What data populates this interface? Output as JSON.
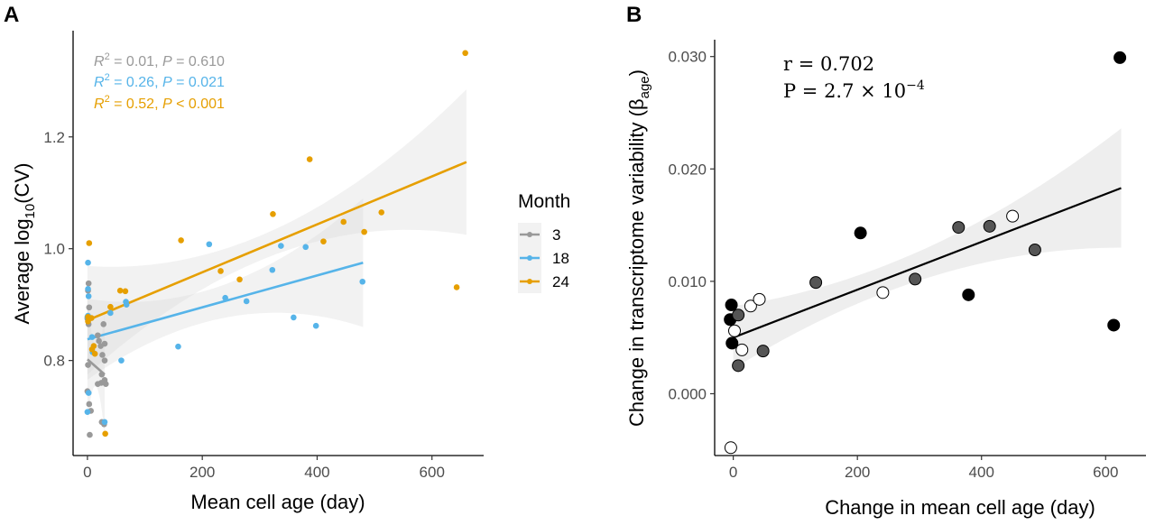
{
  "panel_a": {
    "letter": "A",
    "annotations": [
      {
        "r2_label": "R",
        "r2_sup": "2",
        "r2_value": " = 0.01, ",
        "p_label": "P",
        "p_value": " = 0.610",
        "color": "#999999"
      },
      {
        "r2_label": "R",
        "r2_sup": "2",
        "r2_value": " = 0.26, ",
        "p_label": "P",
        "p_value": " = 0.021",
        "color": "#56b4e9"
      },
      {
        "r2_label": "R",
        "r2_sup": "2",
        "r2_value": " = 0.52, ",
        "p_label": "P",
        "p_value": " < 0.001",
        "color": "#e69f00"
      }
    ],
    "ylabel_main": "Average log",
    "ylabel_sub": "10",
    "ylabel_end": "(CV)",
    "legend": {
      "title": "Month",
      "items": [
        {
          "label": "3",
          "color": "#999999"
        },
        {
          "label": "18",
          "color": "#56b4e9"
        },
        {
          "label": "24",
          "color": "#e69f00"
        }
      ]
    }
  },
  "panel_b": {
    "letter": "B",
    "stat_r": "r = 0.702",
    "stat_p_prefix": "P = 2.7 × 10",
    "stat_p_exp": "−4",
    "ylabel_main": "Change in transcriptome variability (β",
    "ylabel_sub": "age",
    "ylabel_end": ")"
  },
  "chart_data": [
    {
      "type": "scatter",
      "panel": "A",
      "xlabel": "Mean cell age (day)",
      "ylabel": "Average log10(CV)",
      "xlim": [
        -25,
        690
      ],
      "ylim": [
        0.63,
        1.39
      ],
      "xticks": [
        0,
        200,
        400,
        600
      ],
      "yticks": [
        0.8,
        1.0,
        1.2
      ],
      "xtick_labels": [
        "0",
        "200",
        "400",
        "600"
      ],
      "ytick_labels": [
        "0.8",
        "1.0",
        "1.2"
      ],
      "grid": false,
      "legend_position": "right",
      "series": [
        {
          "name": "3",
          "color": "#999999",
          "points": [
            [
              2,
              0.938
            ],
            [
              1,
              0.925
            ],
            [
              3,
              0.895
            ],
            [
              0,
              0.875
            ],
            [
              2,
              0.865
            ],
            [
              1,
              0.792
            ],
            [
              0,
              0.745
            ],
            [
              3,
              0.722
            ],
            [
              6,
              0.71
            ],
            [
              4,
              0.667
            ],
            [
              18,
              0.845
            ],
            [
              20,
              0.835
            ],
            [
              23,
              0.826
            ],
            [
              28,
              0.865
            ],
            [
              30,
              0.83
            ],
            [
              26,
              0.81
            ],
            [
              30,
              0.8
            ],
            [
              25,
              0.775
            ],
            [
              30,
              0.765
            ],
            [
              32,
              0.758
            ],
            [
              24,
              0.76
            ],
            [
              18,
              0.758
            ],
            [
              25,
              0.69
            ],
            [
              29,
              0.686
            ]
          ],
          "fit": {
            "x": [
              0,
              30
            ],
            "y": [
              0.802,
              0.775
            ]
          }
        },
        {
          "name": "18",
          "color": "#56b4e9",
          "points": [
            [
              1,
              0.975
            ],
            [
              1,
              0.928
            ],
            [
              2,
              0.915
            ],
            [
              1,
              0.88
            ],
            [
              0,
              0.878
            ],
            [
              0,
              0.708
            ],
            [
              2,
              0.742
            ],
            [
              8,
              0.842
            ],
            [
              9,
              0.815
            ],
            [
              40,
              0.885
            ],
            [
              59,
              0.8
            ],
            [
              67,
              0.905
            ],
            [
              68,
              0.9
            ],
            [
              158,
              0.825
            ],
            [
              212,
              1.008
            ],
            [
              240,
              0.912
            ],
            [
              277,
              0.906
            ],
            [
              322,
              0.962
            ],
            [
              337,
              1.005
            ],
            [
              359,
              0.877
            ],
            [
              380,
              1.003
            ],
            [
              398,
              0.862
            ],
            [
              479,
              0.941
            ],
            [
              30,
              0.69
            ]
          ],
          "fit": {
            "x": [
              0,
              480
            ],
            "y": [
              0.838,
              0.975
            ]
          }
        },
        {
          "name": "24",
          "color": "#e69f00",
          "points": [
            [
              3,
              1.01
            ],
            [
              1,
              0.878
            ],
            [
              1,
              0.87
            ],
            [
              7,
              0.876
            ],
            [
              8,
              0.82
            ],
            [
              11,
              0.826
            ],
            [
              13,
              0.812
            ],
            [
              40,
              0.896
            ],
            [
              57,
              0.925
            ],
            [
              66,
              0.924
            ],
            [
              163,
              1.015
            ],
            [
              232,
              0.96
            ],
            [
              265,
              0.945
            ],
            [
              323,
              1.062
            ],
            [
              387,
              1.16
            ],
            [
              411,
              1.013
            ],
            [
              446,
              1.048
            ],
            [
              482,
              1.03
            ],
            [
              512,
              1.065
            ],
            [
              643,
              0.931
            ],
            [
              658,
              1.35
            ],
            [
              31,
              0.669
            ]
          ],
          "fit": {
            "x": [
              0,
              660
            ],
            "y": [
              0.872,
              1.155
            ]
          }
        }
      ]
    },
    {
      "type": "scatter",
      "panel": "B",
      "xlabel": "Change in mean cell age (day)",
      "ylabel": "Change in transcriptome variability (βage)",
      "xlim": [
        -30,
        665
      ],
      "ylim": [
        -0.0055,
        0.0315
      ],
      "xticks": [
        0,
        200,
        400,
        600
      ],
      "yticks": [
        0.0,
        0.01,
        0.02,
        0.03
      ],
      "xtick_labels": [
        "0",
        "200",
        "400",
        "600"
      ],
      "ytick_labels": [
        "0.000",
        "0.010",
        "0.020",
        "0.030"
      ],
      "grid": false,
      "series": [
        {
          "name": "",
          "points": [
            {
              "x": -3,
              "y": 0.0079,
              "fill": "#000000"
            },
            {
              "x": -5,
              "y": 0.0066,
              "fill": "#000000"
            },
            {
              "x": 8,
              "y": 0.007,
              "fill": "#555555"
            },
            {
              "x": -2,
              "y": 0.0045,
              "fill": "#000000"
            },
            {
              "x": 2,
              "y": 0.0056,
              "fill": "#ffffff"
            },
            {
              "x": 8,
              "y": 0.0025,
              "fill": "#555555"
            },
            {
              "x": 14,
              "y": 0.0039,
              "fill": "#ffffff"
            },
            {
              "x": 28,
              "y": 0.0078,
              "fill": "#ffffff"
            },
            {
              "x": 42,
              "y": 0.0084,
              "fill": "#ffffff"
            },
            {
              "x": 48,
              "y": 0.0038,
              "fill": "#555555"
            },
            {
              "x": 133,
              "y": 0.0099,
              "fill": "#555555"
            },
            {
              "x": 205,
              "y": 0.0143,
              "fill": "#000000"
            },
            {
              "x": 241,
              "y": 0.009,
              "fill": "#ffffff"
            },
            {
              "x": 293,
              "y": 0.0102,
              "fill": "#555555"
            },
            {
              "x": 363,
              "y": 0.0148,
              "fill": "#555555"
            },
            {
              "x": 379,
              "y": 0.0088,
              "fill": "#000000"
            },
            {
              "x": 413,
              "y": 0.0149,
              "fill": "#555555"
            },
            {
              "x": 450,
              "y": 0.0158,
              "fill": "#ffffff"
            },
            {
              "x": 486,
              "y": 0.0128,
              "fill": "#555555"
            },
            {
              "x": 613,
              "y": 0.0061,
              "fill": "#000000"
            },
            {
              "x": 623,
              "y": 0.0299,
              "fill": "#000000"
            },
            {
              "x": -4,
              "y": -0.0048,
              "fill": "#ffffff"
            }
          ],
          "fit": {
            "x": [
              0,
              625
            ],
            "y": [
              0.005,
              0.0183
            ]
          }
        }
      ]
    }
  ]
}
